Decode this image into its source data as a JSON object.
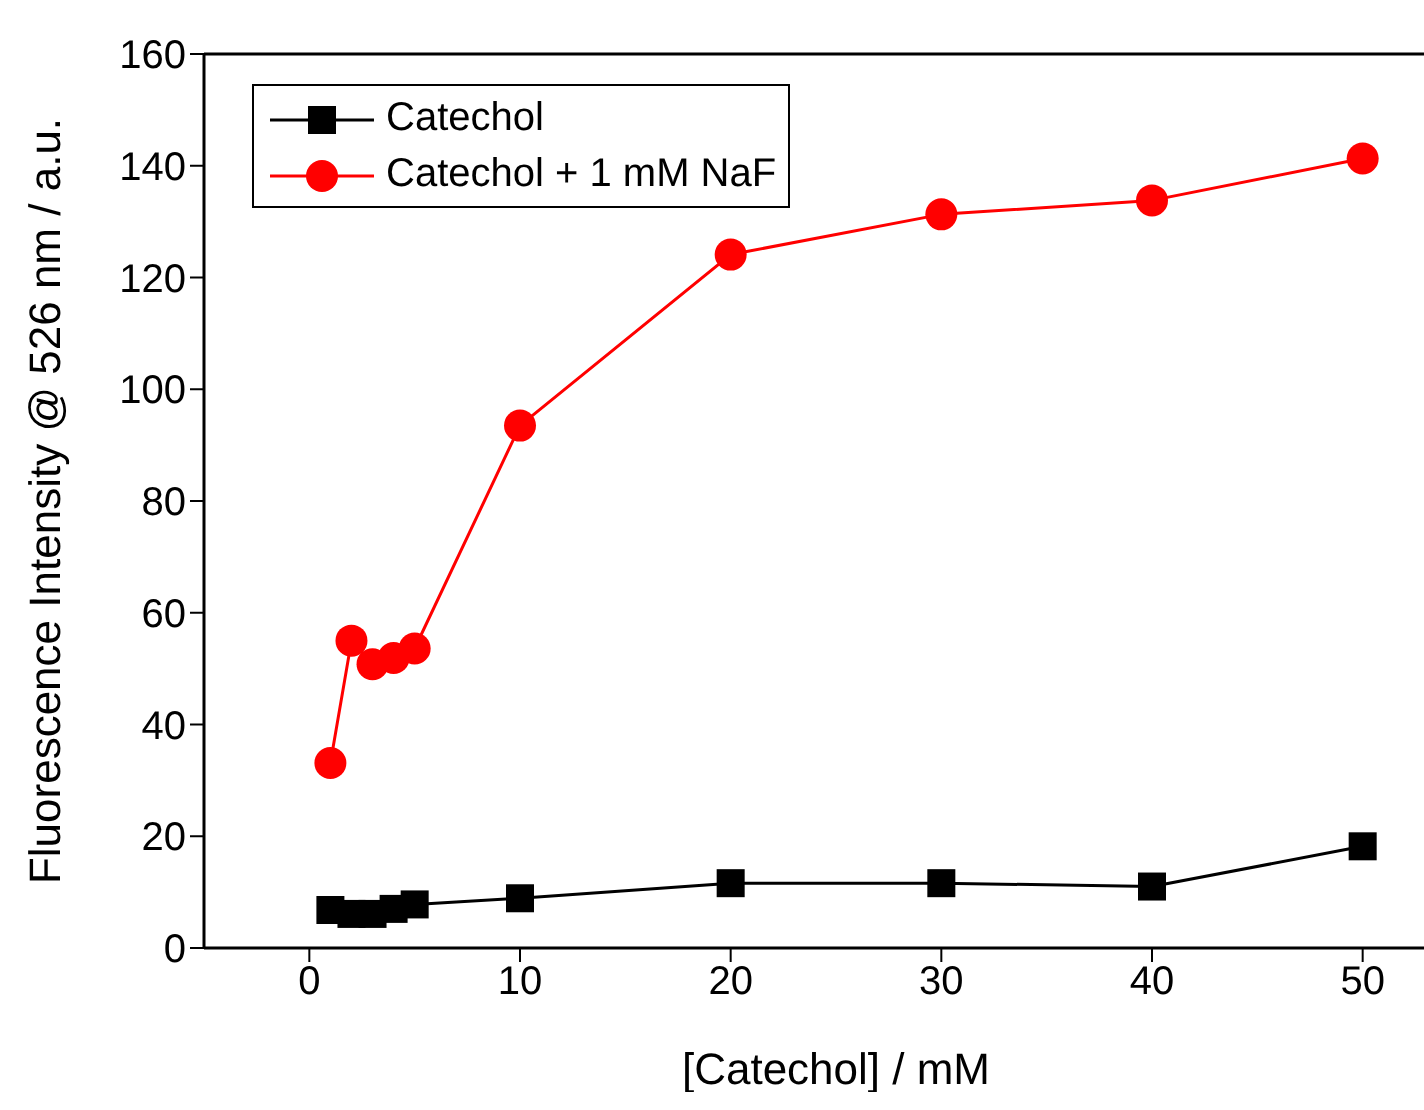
{
  "chart_data": {
    "type": "line",
    "xlabel": "[Catechol] / mM",
    "ylabel": "Fluorescence Intensity @ 526 nm / a.u.",
    "xlim": [
      -5,
      55
    ],
    "xticks": [
      0,
      10,
      20,
      30,
      40,
      50
    ],
    "ylim": [
      0,
      160
    ],
    "yticks": [
      0,
      20,
      40,
      60,
      80,
      100,
      120,
      140,
      160
    ],
    "x": [
      1,
      2,
      3,
      4,
      5,
      10,
      20,
      30,
      40,
      50
    ],
    "grid": false,
    "legend": "top left",
    "series": [
      {
        "name": "Catechol",
        "color": "#000000",
        "marker": "square",
        "values": [
          6.8,
          6.1,
          6.1,
          7.0,
          7.8,
          8.9,
          11.6,
          11.6,
          11.0,
          18.2
        ]
      },
      {
        "name": "Catechol + 1 mM NaF",
        "color": "#ff0000",
        "marker": "circle",
        "values": [
          33.1,
          55.0,
          50.8,
          51.9,
          53.6,
          93.5,
          124.1,
          131.3,
          133.8,
          141.3
        ]
      }
    ]
  }
}
